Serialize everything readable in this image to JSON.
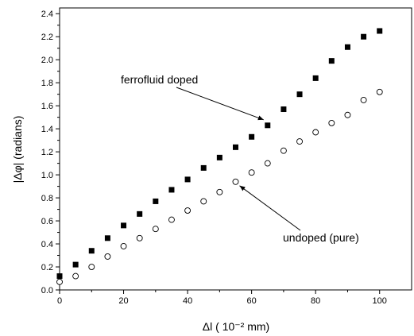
{
  "chart_data": {
    "type": "scatter",
    "xlabel": "Δl ( 10⁻² mm)",
    "ylabel": "|Δφ| (radians)",
    "xlim": [
      0,
      110
    ],
    "ylim": [
      0,
      2.45
    ],
    "x_ticks": [
      0,
      20,
      40,
      60,
      80,
      100
    ],
    "y_ticks": [
      0.0,
      0.2,
      0.4,
      0.6,
      0.8,
      1.0,
      1.2,
      1.4,
      1.6,
      1.8,
      2.0,
      2.2,
      2.4
    ],
    "x_tick_labels": [
      "0",
      "20",
      "40",
      "60",
      "80",
      "100"
    ],
    "y_tick_labels": [
      "0.0",
      "0.2",
      "0.4",
      "0.6",
      "0.8",
      "1.0",
      "1.2",
      "1.4",
      "1.6",
      "1.8",
      "2.0",
      "2.2",
      "2.4"
    ],
    "legend": "none",
    "grid": false,
    "series": [
      {
        "name": "ferrofluid doped",
        "marker": "filled-square",
        "color": "#000000",
        "x": [
          0,
          5,
          10,
          15,
          20,
          25,
          30,
          35,
          40,
          45,
          50,
          55,
          60,
          65,
          70,
          75,
          80,
          85,
          90,
          95,
          100
        ],
        "y": [
          0.12,
          0.22,
          0.34,
          0.45,
          0.56,
          0.66,
          0.77,
          0.87,
          0.96,
          1.06,
          1.15,
          1.24,
          1.33,
          1.43,
          1.57,
          1.7,
          1.84,
          1.99,
          2.11,
          2.2,
          2.25
        ]
      },
      {
        "name": "undoped (pure)",
        "marker": "open-circle",
        "color": "#000000",
        "x": [
          0,
          5,
          10,
          15,
          20,
          25,
          30,
          35,
          40,
          45,
          50,
          55,
          60,
          65,
          70,
          75,
          80,
          85,
          90,
          95,
          100
        ],
        "y": [
          0.07,
          0.12,
          0.2,
          0.29,
          0.38,
          0.45,
          0.53,
          0.61,
          0.69,
          0.77,
          0.85,
          0.94,
          1.02,
          1.1,
          1.21,
          1.29,
          1.37,
          1.45,
          1.52,
          1.65,
          1.72
        ]
      }
    ],
    "annotations": [
      {
        "text": "ferrofluid doped",
        "points_to": [
          65,
          1.43
        ]
      },
      {
        "text": "undoped (pure)",
        "points_to": [
          55,
          0.94
        ]
      }
    ]
  }
}
